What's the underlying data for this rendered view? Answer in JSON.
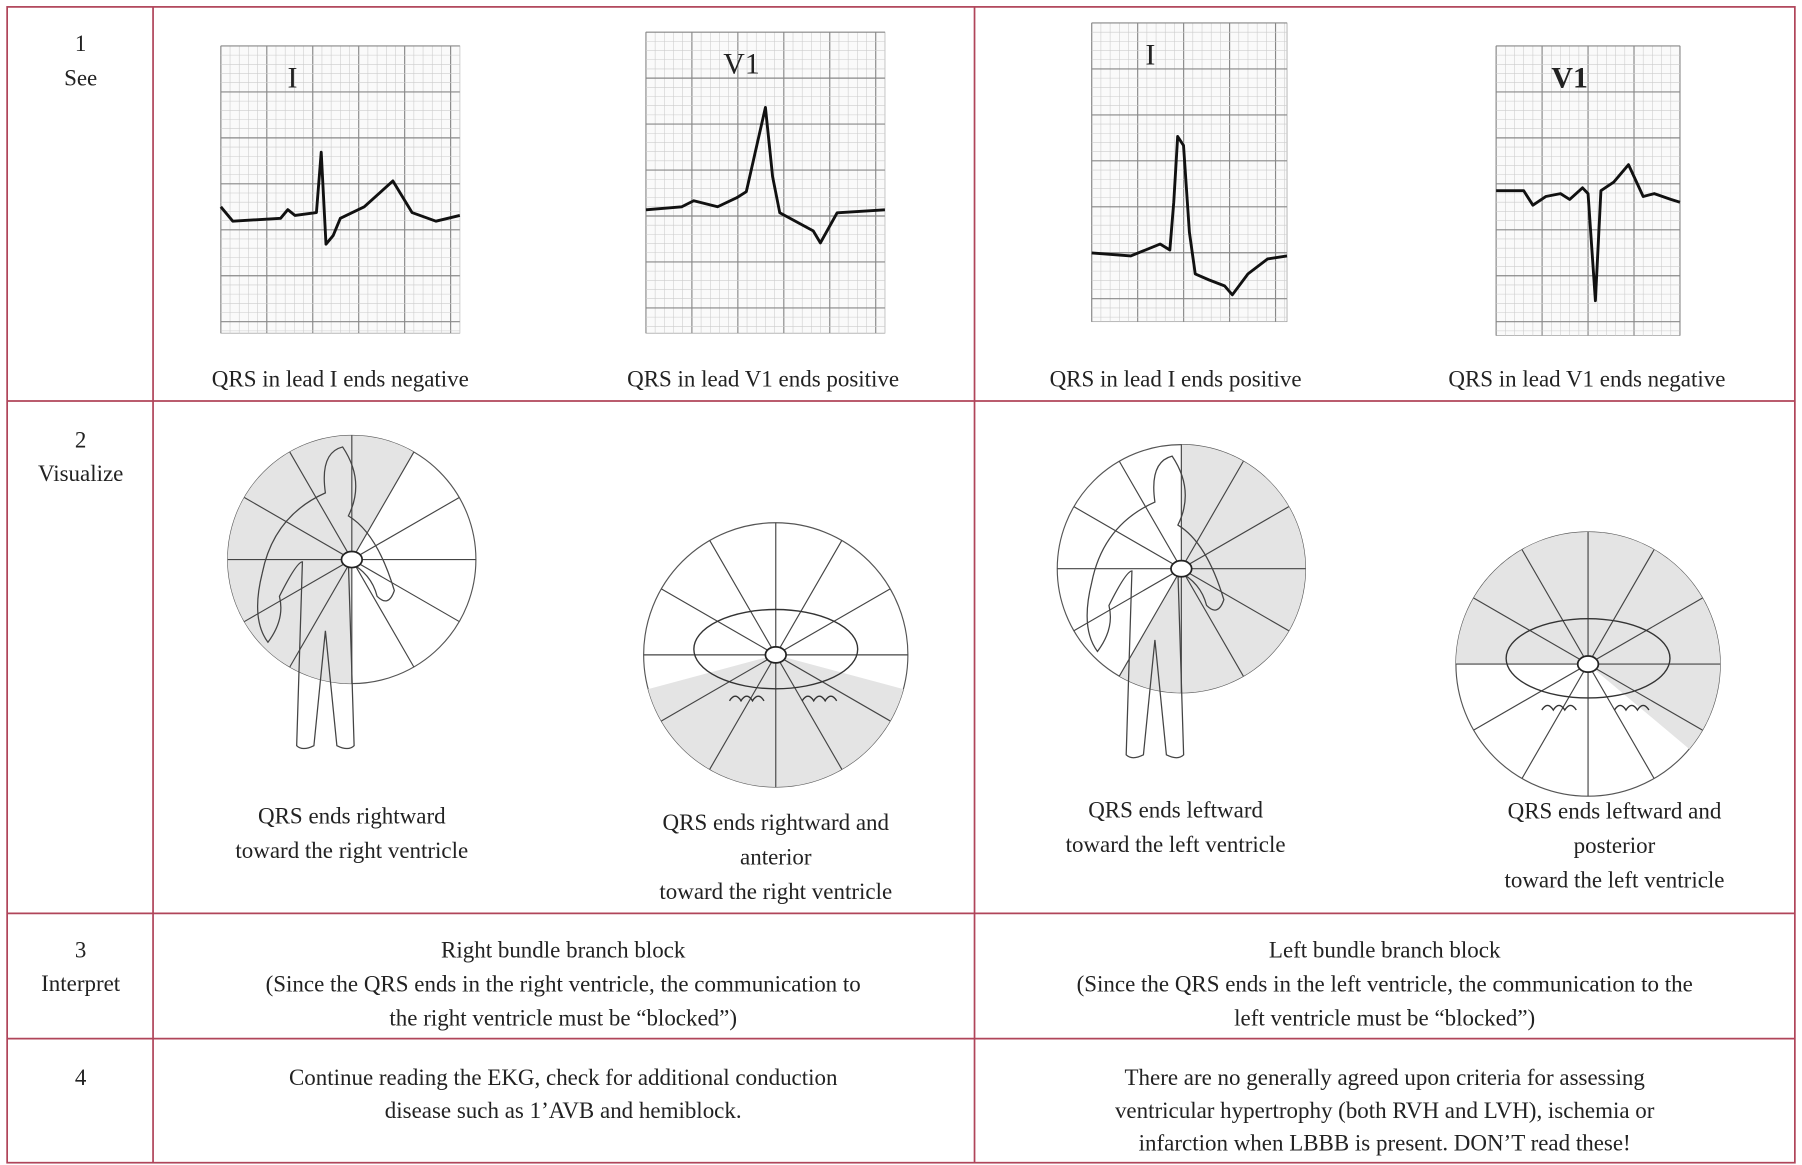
{
  "table": {
    "rows": [
      {
        "number": "1",
        "label": "See",
        "panel_labels": [
          "I",
          "V1",
          "I",
          "V1"
        ],
        "cells": [
          [
            "QRS in lead I ends negative"
          ],
          [
            "QRS in lead V1 ends positive"
          ],
          [
            "QRS in lead I ends positive"
          ],
          [
            "QRS in lead V1 ends negative"
          ]
        ]
      },
      {
        "number": "2",
        "label": "Visualize",
        "cells": [
          [
            "QRS ends rightward",
            "toward the right ventricle"
          ],
          [
            "QRS ends rightward and",
            "anterior",
            "toward the right ventricle"
          ],
          [
            "QRS ends leftward",
            "toward the left ventricle"
          ],
          [
            "QRS ends leftward and",
            "posterior",
            "toward the left ventricle"
          ]
        ]
      },
      {
        "number": "3",
        "label": "Interpret",
        "cells": [
          [
            "Right bundle branch block",
            "(Since the QRS ends in the right ventricle, the communication to",
            "the right ventricle must be “blocked”)"
          ],
          [
            "Left bundle branch block",
            "(Since the QRS ends in the left ventricle, the communication to the",
            "left ventricle must be “blocked”)"
          ]
        ]
      },
      {
        "number": "4",
        "cells": [
          [
            "Continue reading the EKG, check for additional conduction",
            "disease such as 1’AVB and hemiblock."
          ],
          [
            "There are no generally agreed upon criteria for assessing",
            "ventricular hypertrophy (both RVH and LVH), ischemia or",
            "infarction when LBBB is present. DON’T read these!"
          ]
        ]
      }
    ]
  }
}
